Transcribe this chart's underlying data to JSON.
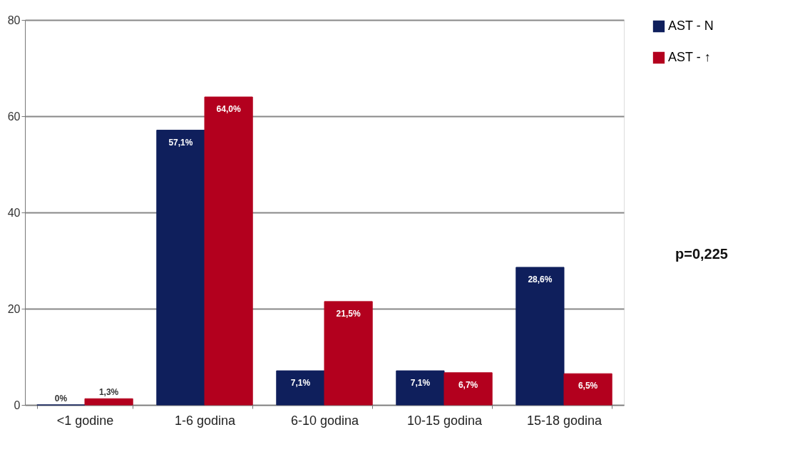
{
  "chart_data": {
    "type": "bar",
    "categories": [
      "<1 godine",
      "1-6 godina",
      "6-10 godina",
      "10-15 godina",
      "15-18 godina"
    ],
    "series": [
      {
        "name": "AST - N",
        "color": "#0f1f5c",
        "values": [
          0,
          57.1,
          7.1,
          7.1,
          28.6
        ],
        "value_labels": [
          "0%",
          "57,1%",
          "7,1%",
          "7,1%",
          "28,6%"
        ]
      },
      {
        "name": "AST - ↑",
        "color": "#b3001e",
        "values": [
          1.3,
          64.0,
          21.5,
          6.7,
          6.5
        ],
        "value_labels": [
          "1,3%",
          "64,0%",
          "21,5%",
          "6,7%",
          "6,5%"
        ]
      }
    ],
    "ylim": [
      0,
      80
    ],
    "yticks": [
      0,
      20,
      40,
      60,
      80
    ],
    "grid": "y",
    "legend": "right",
    "annotations": [
      "p=0,225"
    ]
  }
}
